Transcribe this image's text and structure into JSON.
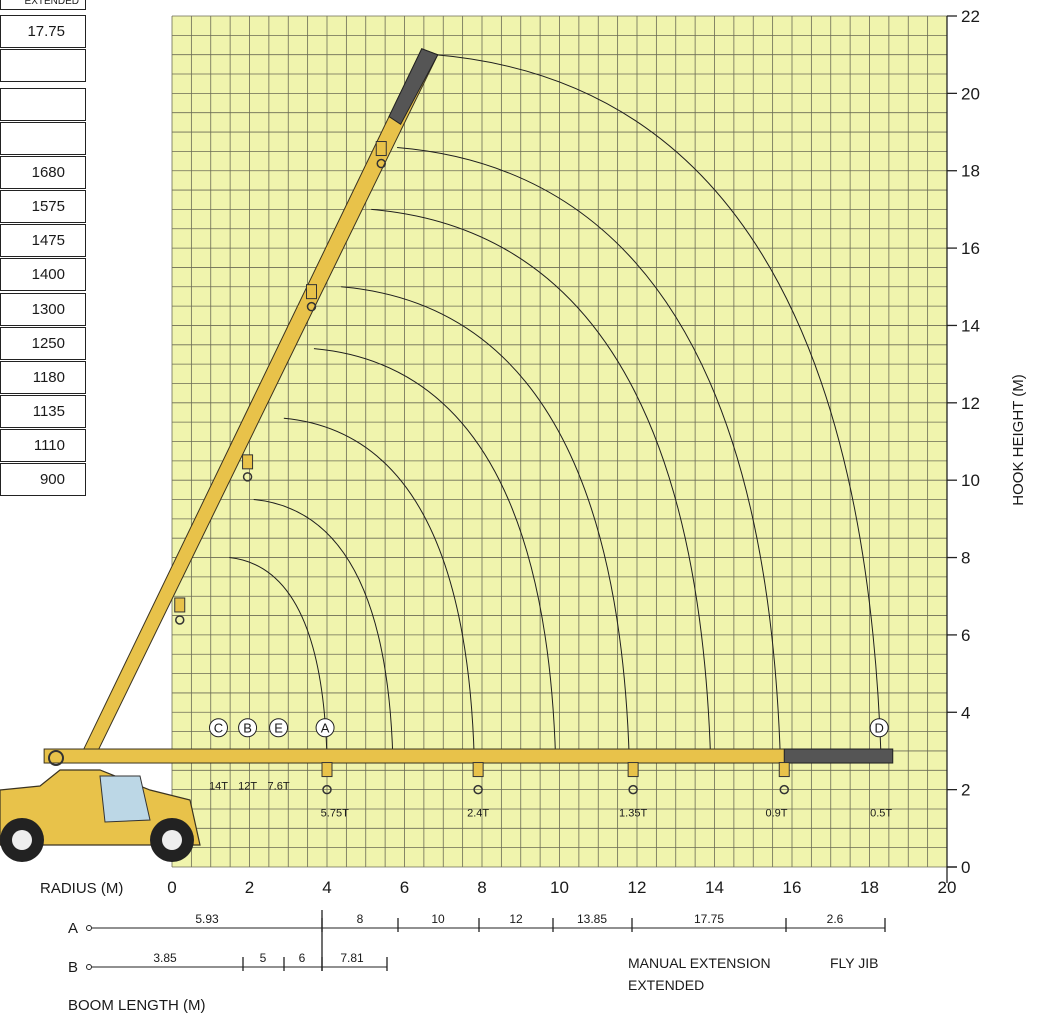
{
  "table": {
    "header": "EXTENDED",
    "cells": [
      "17.75",
      "",
      "",
      "",
      "1680",
      "1575",
      "1475",
      "1400",
      "1300",
      "1250",
      "1180",
      "1135",
      "1110",
      "900"
    ]
  },
  "chart_data": {
    "type": "diagram",
    "x_axis_label": "RADIUS (M)",
    "x_ticks": [
      "0",
      "2",
      "4",
      "6",
      "8",
      "10",
      "12",
      "14",
      "16",
      "18",
      "20"
    ],
    "y_axis_label": "HOOK HEIGHT (M)",
    "y_ticks": [
      "0",
      "2",
      "4",
      "6",
      "8",
      "10",
      "12",
      "14",
      "16",
      "18",
      "20",
      "22"
    ],
    "grid": true,
    "grid_color": "#f0f4ad",
    "boom_color": "#e8c24a",
    "circle_labels": [
      "C",
      "B",
      "E",
      "A",
      "D"
    ],
    "capacities": [
      "14T",
      "12T",
      "7.6T",
      "5.75T",
      "2.4T",
      "1.35T",
      "0.9T",
      "0.5T"
    ],
    "working_radius_arcs": [
      {
        "r": 4.0,
        "h": 8.0
      },
      {
        "r": 5.7,
        "h": 9.5
      },
      {
        "r": 7.8,
        "h": 11.6
      },
      {
        "r": 9.9,
        "h": 13.4
      },
      {
        "r": 11.8,
        "h": 15.0
      },
      {
        "r": 13.9,
        "h": 17.0
      },
      {
        "r": 15.7,
        "h": 18.6
      },
      {
        "r": 18.3,
        "h": 21.0
      }
    ],
    "boom_length_a": {
      "label": "A",
      "segments": [
        "5.93",
        "8",
        "10",
        "12",
        "13.85",
        "17.75",
        "2.6"
      ]
    },
    "boom_length_b": {
      "label": "B",
      "segments": [
        "3.85",
        "5",
        "6",
        "7.81"
      ]
    },
    "manual_extension_label": "MANUAL EXTENSION",
    "extended_label": "EXTENDED",
    "fly_jib_label": "FLY JIB",
    "boom_length_label": "BOOM LENGTH (M)"
  }
}
